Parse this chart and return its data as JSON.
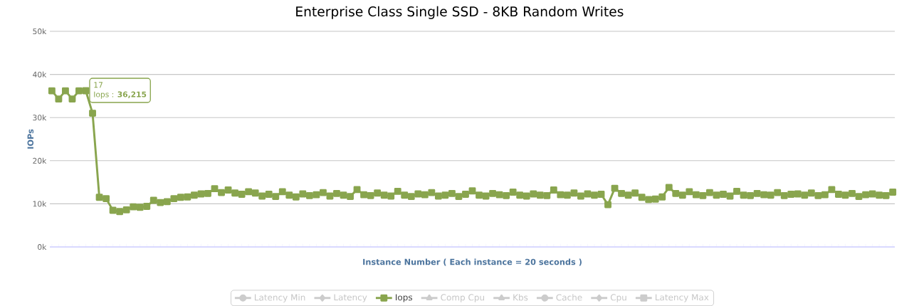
{
  "chart_data": {
    "type": "line",
    "title": "Enterprise Class Single SSD - 8KB Random Writes",
    "xlabel": "Instance Number ( Each instance = 20 seconds )",
    "ylabel": "IOPs",
    "categories": [
      null,
      null,
      null,
      null,
      null,
      null,
      null,
      null,
      null,
      null,
      null,
      null,
      null,
      null,
      null,
      null,
      null,
      null,
      null,
      null,
      null,
      null,
      null,
      null,
      null,
      null,
      null,
      null,
      null,
      null,
      null,
      null,
      null,
      null,
      null,
      null,
      null,
      null,
      null,
      null,
      null,
      null,
      null,
      null,
      null,
      null,
      null,
      null,
      null,
      null,
      null,
      null,
      null,
      null,
      null,
      null,
      null,
      null,
      null,
      null,
      null,
      null,
      null,
      null,
      null,
      null,
      null,
      null,
      null,
      null,
      null,
      null,
      null,
      null,
      null,
      null,
      null,
      null,
      null,
      null,
      null,
      null,
      null,
      null,
      null,
      null,
      null,
      null,
      null,
      null,
      null,
      null,
      null,
      null,
      null,
      null,
      null,
      null,
      null,
      null,
      null,
      null,
      null,
      null,
      null,
      null,
      null,
      null,
      null,
      null,
      null,
      null,
      null,
      null,
      null,
      null,
      null,
      null,
      null,
      null,
      null,
      null,
      null,
      null,
      null
    ],
    "series": [
      {
        "name": "Latency Min",
        "color": "#cccccc",
        "marker": "circle",
        "values": [
          null,
          null,
          null,
          null,
          null,
          null,
          null,
          null,
          null,
          null,
          null,
          null,
          null,
          null,
          null,
          null,
          null,
          null,
          null,
          null,
          null,
          null,
          null,
          null,
          null,
          null,
          null,
          null,
          null,
          null,
          null,
          null,
          null,
          null,
          null,
          null,
          null,
          null,
          null,
          null,
          null,
          null,
          null,
          null,
          null,
          null,
          null,
          null,
          null,
          null,
          null,
          null,
          null,
          null,
          null,
          null,
          null,
          null,
          null,
          null,
          null,
          null,
          null,
          null,
          null,
          null,
          null,
          null,
          null,
          null,
          null,
          null,
          null,
          null,
          null,
          null,
          null,
          null,
          null,
          null,
          null,
          null,
          null,
          null,
          null,
          null,
          null,
          null,
          null,
          null,
          null,
          null,
          null,
          null,
          null,
          null,
          null,
          null,
          null,
          null,
          null,
          null,
          null,
          null,
          null,
          null,
          null,
          null,
          null,
          null,
          null,
          null,
          null,
          null,
          null,
          null,
          null,
          null,
          null,
          null,
          null,
          null,
          null,
          null,
          null
        ]
      },
      {
        "name": "Latency",
        "color": "#cccccc",
        "marker": "diamond",
        "values": [
          null,
          null,
          null,
          null,
          null,
          null,
          null,
          null,
          null,
          null,
          null,
          null,
          null,
          null,
          null,
          null,
          null,
          null,
          null,
          null,
          null,
          null,
          null,
          null,
          null,
          null,
          null,
          null,
          null,
          null,
          null,
          null,
          null,
          null,
          null,
          null,
          null,
          null,
          null,
          null,
          null,
          null,
          null,
          null,
          null,
          null,
          null,
          null,
          null,
          null,
          null,
          null,
          null,
          null,
          null,
          null,
          null,
          null,
          null,
          null,
          null,
          null,
          null,
          null,
          null,
          null,
          null,
          null,
          null,
          null,
          null,
          null,
          null,
          null,
          null,
          null,
          null,
          null,
          null,
          null,
          null,
          null,
          null,
          null,
          null,
          null,
          null,
          null,
          null,
          null,
          null,
          null,
          null,
          null,
          null,
          null,
          null,
          null,
          null,
          null,
          null,
          null,
          null,
          null,
          null,
          null,
          null,
          null,
          null,
          null,
          null,
          null,
          null,
          null,
          null,
          null,
          null,
          null,
          null,
          null,
          null,
          null,
          null,
          null,
          null
        ]
      },
      {
        "name": "Iops",
        "color": "#89a54e",
        "marker": "square",
        "values": [
          36200,
          34300,
          36200,
          34300,
          36200,
          36215,
          31000,
          11500,
          11200,
          8500,
          8200,
          8600,
          9300,
          9200,
          9400,
          10800,
          10300,
          10500,
          11200,
          11500,
          11600,
          12000,
          12300,
          12400,
          13500,
          12600,
          13200,
          12500,
          12200,
          12800,
          12500,
          11800,
          12200,
          11700,
          12800,
          12000,
          11600,
          12300,
          11900,
          12100,
          12600,
          11800,
          12400,
          12000,
          11700,
          13300,
          12100,
          11900,
          12500,
          12000,
          11800,
          12900,
          12000,
          11700,
          12300,
          12100,
          12600,
          11800,
          12000,
          12400,
          11700,
          12200,
          13000,
          12000,
          11800,
          12400,
          12100,
          11900,
          12700,
          12000,
          11800,
          12300,
          12000,
          11900,
          13200,
          12100,
          12000,
          12500,
          11800,
          12300,
          12000,
          12200,
          9800,
          13600,
          12400,
          12000,
          12500,
          11500,
          11000,
          11100,
          11600,
          13800,
          12400,
          12000,
          12800,
          12100,
          11900,
          12600,
          12000,
          12200,
          11800,
          12900,
          12000,
          11900,
          12400,
          12100,
          12000,
          12600,
          11900,
          12200,
          12300,
          12000,
          12500,
          11900,
          12100,
          13300,
          12200,
          12000,
          12400,
          11700,
          12100,
          12300,
          12000,
          11900,
          12700
        ]
      },
      {
        "name": "Comp Cpu",
        "color": "#cccccc",
        "marker": "triangle",
        "values": [
          null,
          null,
          null,
          null,
          null,
          null,
          null,
          null,
          null,
          null,
          null,
          null,
          null,
          null,
          null,
          null,
          null,
          null,
          null,
          null,
          null,
          null,
          null,
          null,
          null,
          null,
          null,
          null,
          null,
          null,
          null,
          null,
          null,
          null,
          null,
          null,
          null,
          null,
          null,
          null,
          null,
          null,
          null,
          null,
          null,
          null,
          null,
          null,
          null,
          null,
          null,
          null,
          null,
          null,
          null,
          null,
          null,
          null,
          null,
          null,
          null,
          null,
          null,
          null,
          null,
          null,
          null,
          null,
          null,
          null,
          null,
          null,
          null,
          null,
          null,
          null,
          null,
          null,
          null,
          null,
          null,
          null,
          null,
          null,
          null,
          null,
          null,
          null,
          null,
          null,
          null,
          null,
          null,
          null,
          null,
          null,
          null,
          null,
          null,
          null,
          null,
          null,
          null,
          null,
          null,
          null,
          null,
          null,
          null,
          null,
          null,
          null,
          null,
          null,
          null,
          null,
          null,
          null,
          null,
          null,
          null,
          null,
          null,
          null,
          null
        ]
      },
      {
        "name": "Kbs",
        "color": "#cccccc",
        "marker": "triangle",
        "values": [
          null,
          null,
          null,
          null,
          null,
          null,
          null,
          null,
          null,
          null,
          null,
          null,
          null,
          null,
          null,
          null,
          null,
          null,
          null,
          null,
          null,
          null,
          null,
          null,
          null,
          null,
          null,
          null,
          null,
          null,
          null,
          null,
          null,
          null,
          null,
          null,
          null,
          null,
          null,
          null,
          null,
          null,
          null,
          null,
          null,
          null,
          null,
          null,
          null,
          null,
          null,
          null,
          null,
          null,
          null,
          null,
          null,
          null,
          null,
          null,
          null,
          null,
          null,
          null,
          null,
          null,
          null,
          null,
          null,
          null,
          null,
          null,
          null,
          null,
          null,
          null,
          null,
          null,
          null,
          null,
          null,
          null,
          null,
          null,
          null,
          null,
          null,
          null,
          null,
          null,
          null,
          null,
          null,
          null,
          null,
          null,
          null,
          null,
          null,
          null,
          null,
          null,
          null,
          null,
          null,
          null,
          null,
          null,
          null,
          null,
          null,
          null,
          null,
          null,
          null,
          null,
          null,
          null,
          null,
          null,
          null,
          null,
          null,
          null,
          null
        ]
      },
      {
        "name": "Cache",
        "color": "#cccccc",
        "marker": "circle",
        "values": [
          null,
          null,
          null,
          null,
          null,
          null,
          null,
          null,
          null,
          null,
          null,
          null,
          null,
          null,
          null,
          null,
          null,
          null,
          null,
          null,
          null,
          null,
          null,
          null,
          null,
          null,
          null,
          null,
          null,
          null,
          null,
          null,
          null,
          null,
          null,
          null,
          null,
          null,
          null,
          null,
          null,
          null,
          null,
          null,
          null,
          null,
          null,
          null,
          null,
          null,
          null,
          null,
          null,
          null,
          null,
          null,
          null,
          null,
          null,
          null,
          null,
          null,
          null,
          null,
          null,
          null,
          null,
          null,
          null,
          null,
          null,
          null,
          null,
          null,
          null,
          null,
          null,
          null,
          null,
          null,
          null,
          null,
          null,
          null,
          null,
          null,
          null,
          null,
          null,
          null,
          null,
          null,
          null,
          null,
          null,
          null,
          null,
          null,
          null,
          null,
          null,
          null,
          null,
          null,
          null,
          null,
          null,
          null,
          null,
          null,
          null,
          null,
          null,
          null,
          null,
          null,
          null,
          null,
          null,
          null,
          null,
          null,
          null,
          null,
          null
        ]
      },
      {
        "name": "Cpu",
        "color": "#cccccc",
        "marker": "diamond",
        "values": [
          null,
          null,
          null,
          null,
          null,
          null,
          null,
          null,
          null,
          null,
          null,
          null,
          null,
          null,
          null,
          null,
          null,
          null,
          null,
          null,
          null,
          null,
          null,
          null,
          null,
          null,
          null,
          null,
          null,
          null,
          null,
          null,
          null,
          null,
          null,
          null,
          null,
          null,
          null,
          null,
          null,
          null,
          null,
          null,
          null,
          null,
          null,
          null,
          null,
          null,
          null,
          null,
          null,
          null,
          null,
          null,
          null,
          null,
          null,
          null,
          null,
          null,
          null,
          null,
          null,
          null,
          null,
          null,
          null,
          null,
          null,
          null,
          null,
          null,
          null,
          null,
          null,
          null,
          null,
          null,
          null,
          null,
          null,
          null,
          null,
          null,
          null,
          null,
          null,
          null,
          null,
          null,
          null,
          null,
          null,
          null,
          null,
          null,
          null,
          null,
          null,
          null,
          null,
          null,
          null,
          null,
          null,
          null,
          null,
          null,
          null,
          null,
          null,
          null,
          null,
          null,
          null,
          null,
          null,
          null,
          null,
          null,
          null,
          null,
          null
        ]
      },
      {
        "name": "Latency Max",
        "color": "#cccccc",
        "marker": "square",
        "values": [
          null,
          null,
          null,
          null,
          null,
          null,
          null,
          null,
          null,
          null,
          null,
          null,
          null,
          null,
          null,
          null,
          null,
          null,
          null,
          null,
          null,
          null,
          null,
          null,
          null,
          null,
          null,
          null,
          null,
          null,
          null,
          null,
          null,
          null,
          null,
          null,
          null,
          null,
          null,
          null,
          null,
          null,
          null,
          null,
          null,
          null,
          null,
          null,
          null,
          null,
          null,
          null,
          null,
          null,
          null,
          null,
          null,
          null,
          null,
          null,
          null,
          null,
          null,
          null,
          null,
          null,
          null,
          null,
          null,
          null,
          null,
          null,
          null,
          null,
          null,
          null,
          null,
          null,
          null,
          null,
          null,
          null,
          null,
          null,
          null,
          null,
          null,
          null,
          null,
          null,
          null,
          null,
          null,
          null,
          null,
          null,
          null,
          null,
          null,
          null,
          null,
          null,
          null,
          null,
          null,
          null,
          null,
          null,
          null,
          null,
          null,
          null,
          null,
          null,
          null,
          null,
          null,
          null,
          null,
          null,
          null,
          null,
          null,
          null,
          null
        ]
      }
    ],
    "ylim": [
      0,
      50000
    ],
    "yticks": [
      {
        "value": 0,
        "label": "0k"
      },
      {
        "value": 10000,
        "label": "10k"
      },
      {
        "value": 20000,
        "label": "20k"
      },
      {
        "value": 30000,
        "label": "30k"
      },
      {
        "value": 40000,
        "label": "40k"
      },
      {
        "value": 50000,
        "label": "50k"
      }
    ],
    "grid": "y",
    "legend": "bottom",
    "tick_labels": "y",
    "line_style": "solid",
    "annotations": [
      "17",
      "Iops : **36,215**"
    ]
  }
}
